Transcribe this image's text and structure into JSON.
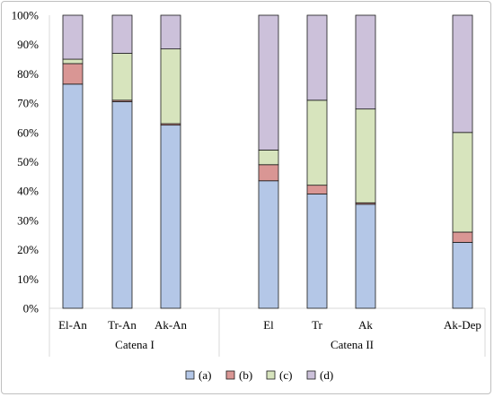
{
  "chart_data": {
    "type": "bar",
    "stacked": true,
    "percent": true,
    "categories": [
      "El-An",
      "Tr-An",
      "Ak-An",
      "El",
      "Tr",
      "Ak",
      "Ak-Dep"
    ],
    "groups": [
      {
        "label": "Catena I",
        "categories": [
          "El-An",
          "Tr-An",
          "Ak-An"
        ]
      },
      {
        "label": "Catena II",
        "categories": [
          "El",
          "Tr",
          "Ak",
          "Ak-Dep"
        ]
      }
    ],
    "series": [
      {
        "name": "(a)",
        "color": "#b4c7e7",
        "values": [
          76.5,
          70.5,
          62.5,
          43.5,
          39.0,
          35.5,
          22.5
        ]
      },
      {
        "name": "(b)",
        "color": "#d99694",
        "values": [
          7.0,
          0.5,
          0.5,
          5.5,
          3.0,
          0.5,
          3.5
        ]
      },
      {
        "name": "(c)",
        "color": "#d7e4bd",
        "values": [
          1.5,
          16.0,
          25.5,
          5.0,
          29.0,
          32.0,
          34.0
        ]
      },
      {
        "name": "(d)",
        "color": "#ccc1da",
        "values": [
          15.0,
          13.0,
          11.5,
          46.0,
          29.0,
          32.0,
          40.0
        ]
      }
    ],
    "ylim": [
      0,
      100
    ],
    "yticks": [
      "0%",
      "10%",
      "20%",
      "30%",
      "40%",
      "50%",
      "60%",
      "70%",
      "80%",
      "90%",
      "100%"
    ],
    "legend_position": "bottom",
    "grid": false
  }
}
